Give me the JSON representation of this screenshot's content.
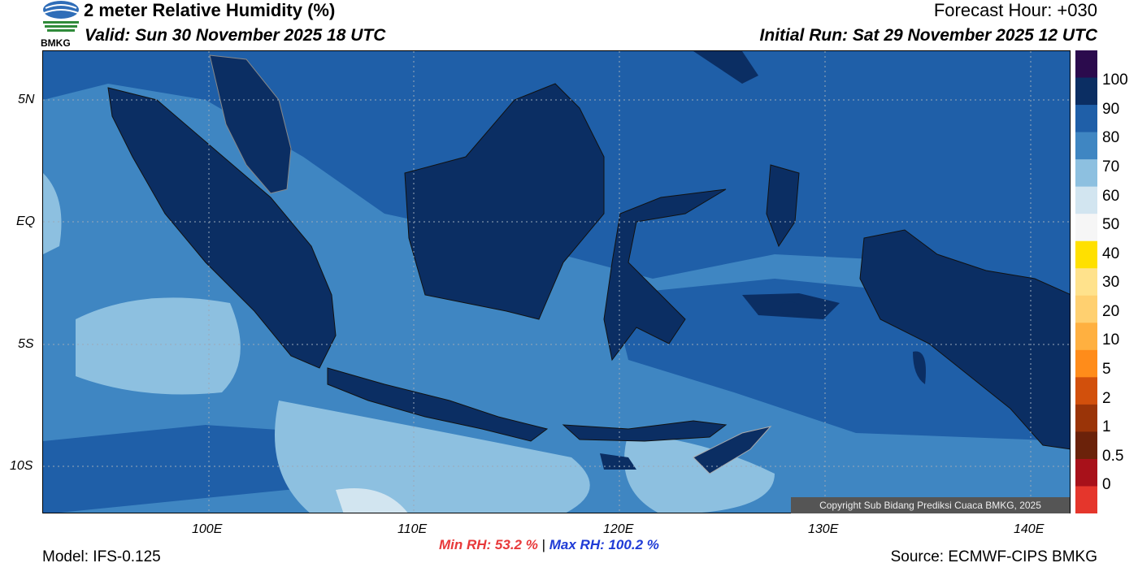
{
  "header": {
    "title": "2 meter Relative Humidity (%)",
    "valid": "Valid: Sun 30 November 2025 18 UTC",
    "forecast_hour": "Forecast Hour: +030",
    "initial_run": "Initial Run: Sat 29 November 2025 12 UTC",
    "logo_text": "BMKG"
  },
  "map": {
    "lat_labels": [
      "5N",
      "EQ",
      "5S",
      "10S"
    ],
    "lon_labels": [
      "100E",
      "110E",
      "120E",
      "130E",
      "140E"
    ],
    "copyright": "Copyright Sub Bidang Prediksi Cuaca BMKG, 2025"
  },
  "colorbar": {
    "labels": [
      "100",
      "90",
      "80",
      "70",
      "60",
      "50",
      "40",
      "30",
      "20",
      "10",
      "5",
      "2",
      "1",
      "0.5",
      "0"
    ],
    "colors": [
      "#2b0b4d",
      "#0b2e63",
      "#1f5fa8",
      "#3f86c2",
      "#8dc0e0",
      "#d2e5f0",
      "#f6f6f6",
      "#ffe000",
      "#ffe28c",
      "#ffd070",
      "#ffb040",
      "#ff8c1a",
      "#d2500c",
      "#9a3408",
      "#6b220a",
      "#a8111a",
      "#e5362c"
    ]
  },
  "footer": {
    "model": "Model: IFS-0.125",
    "source": "Source: ECMWF-CIPS BMKG",
    "min_rh": "Min RH:  53.2 %",
    "separator": "|",
    "max_rh": "Max RH: 100.2 %"
  }
}
